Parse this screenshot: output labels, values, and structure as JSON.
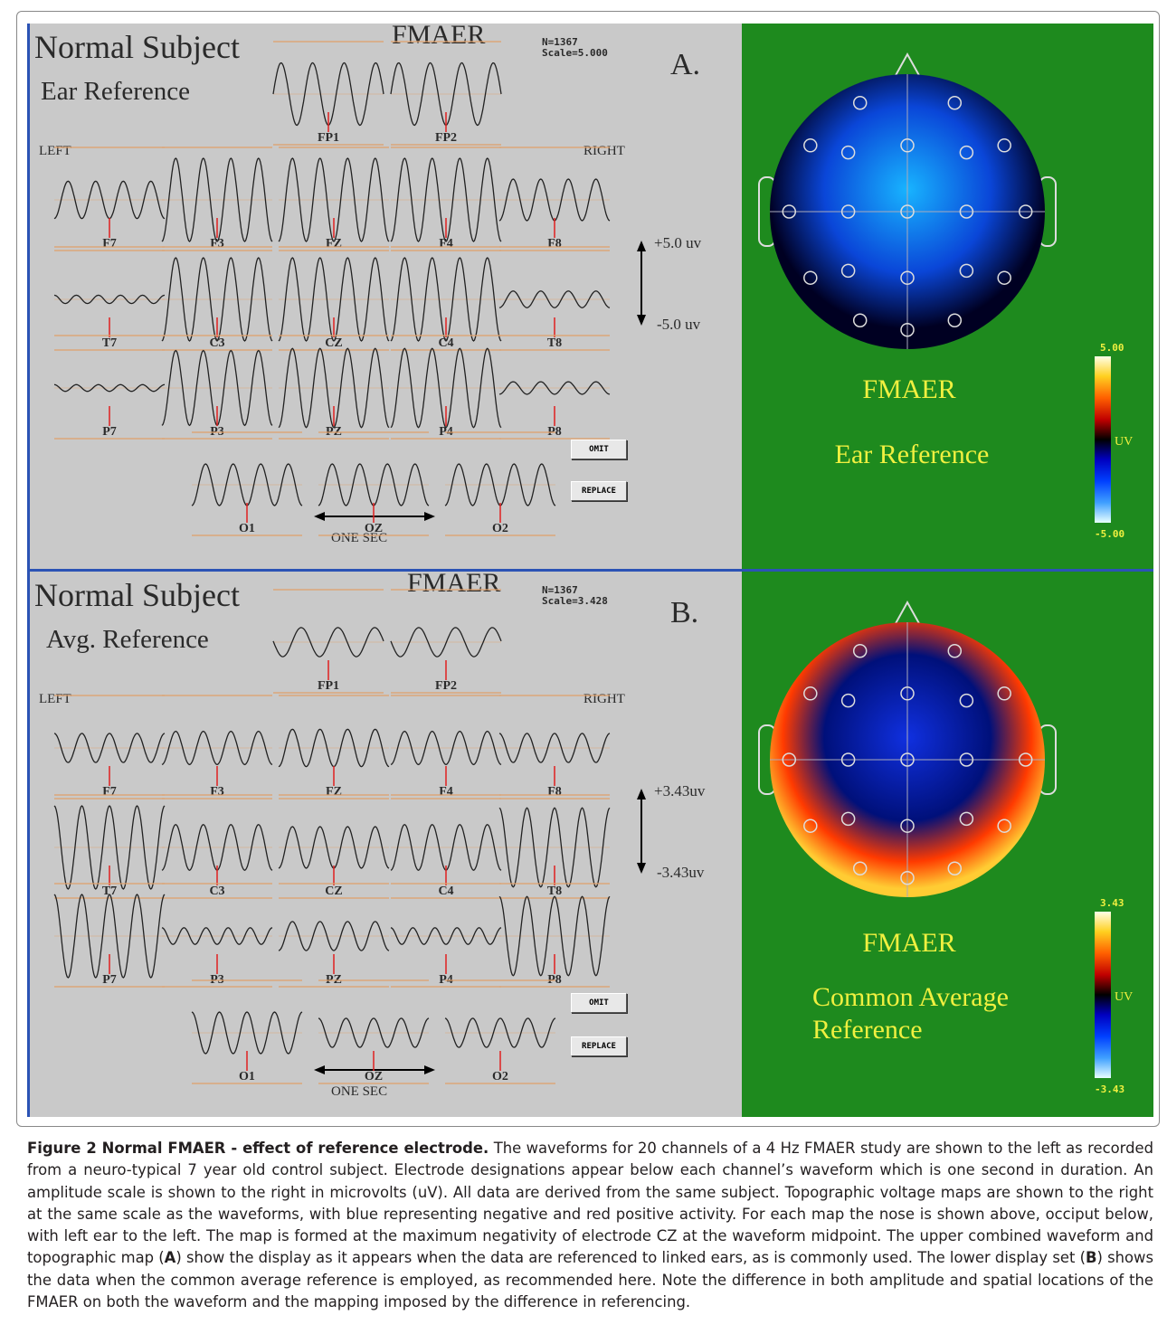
{
  "panels": [
    {
      "id": "A",
      "title": "Normal Subject",
      "subtitle": "Ear Reference",
      "header": "FMAER",
      "stats": [
        "N=1367",
        "Scale=5.000"
      ],
      "letter": "A.",
      "left_label": "LEFT",
      "right_label": "RIGHT",
      "scale_top": "+5.0 uv",
      "scale_bottom": "-5.0 uv",
      "time_label": "ONE SEC",
      "omit_label": "OMIT",
      "replace_label": "REPLACE",
      "map_title": "FMAER",
      "map_subtitle_lines": [
        "Ear  Reference"
      ],
      "colorbar_max": "5.00",
      "colorbar_min": "-5.00",
      "colorbar_unit": "UV",
      "map_colors": [
        "#18b4ff",
        "#0a46d8",
        "#000022"
      ],
      "channels": [
        {
          "name": "FP1",
          "amp": 0.75,
          "freq": 3.5,
          "phase": 0.0
        },
        {
          "name": "FP2",
          "amp": 0.75,
          "freq": 3.5,
          "phase": 0.0
        },
        {
          "name": "F7",
          "amp": 0.45,
          "freq": 4,
          "phase": 0.0
        },
        {
          "name": "F3",
          "amp": 1.0,
          "freq": 4,
          "phase": 0.0
        },
        {
          "name": "FZ",
          "amp": 1.0,
          "freq": 4,
          "phase": 0.0
        },
        {
          "name": "F4",
          "amp": 1.0,
          "freq": 4,
          "phase": 0.0
        },
        {
          "name": "F8",
          "amp": 0.5,
          "freq": 4,
          "phase": 0.0
        },
        {
          "name": "T7",
          "amp": 0.1,
          "freq": 5,
          "phase": 0.0
        },
        {
          "name": "C3",
          "amp": 1.0,
          "freq": 4,
          "phase": 0.0
        },
        {
          "name": "CZ",
          "amp": 1.0,
          "freq": 4,
          "phase": 0.0
        },
        {
          "name": "C4",
          "amp": 1.0,
          "freq": 4,
          "phase": 0.0
        },
        {
          "name": "T8",
          "amp": 0.2,
          "freq": 4,
          "phase": 0.0
        },
        {
          "name": "P7",
          "amp": 0.08,
          "freq": 5,
          "phase": 0.0
        },
        {
          "name": "P3",
          "amp": 0.9,
          "freq": 4,
          "phase": 0.0
        },
        {
          "name": "PZ",
          "amp": 0.95,
          "freq": 4,
          "phase": 0.0
        },
        {
          "name": "P4",
          "amp": 0.95,
          "freq": 4,
          "phase": 0.0
        },
        {
          "name": "P8",
          "amp": 0.15,
          "freq": 4,
          "phase": 0.0
        },
        {
          "name": "O1",
          "amp": 0.5,
          "freq": 4,
          "phase": 0.0
        },
        {
          "name": "OZ",
          "amp": 0.5,
          "freq": 4,
          "phase": 0.0
        },
        {
          "name": "O2",
          "amp": 0.5,
          "freq": 4,
          "phase": 0.0
        }
      ]
    },
    {
      "id": "B",
      "title": "Normal Subject",
      "subtitle": "Avg. Reference",
      "header": "FMAER",
      "stats": [
        "N=1367",
        "Scale=3.428"
      ],
      "letter": "B.",
      "left_label": "LEFT",
      "right_label": "RIGHT",
      "scale_top": "+3.43uv",
      "scale_bottom": "-3.43uv",
      "time_label": "ONE SEC",
      "omit_label": "OMIT",
      "replace_label": "REPLACE",
      "map_title": "FMAER",
      "map_subtitle_lines": [
        "Common Average",
        "Reference"
      ],
      "colorbar_max": "3.43",
      "colorbar_min": "-3.43",
      "colorbar_unit": "UV",
      "map_colors": [
        "#1030e0",
        "#00107a",
        "#ff3a00"
      ],
      "channels": [
        {
          "name": "FP1",
          "amp": 0.35,
          "freq": 3,
          "phase": 1.5
        },
        {
          "name": "FP2",
          "amp": 0.35,
          "freq": 3,
          "phase": 1.5
        },
        {
          "name": "F7",
          "amp": 0.35,
          "freq": 4,
          "phase": 3.14
        },
        {
          "name": "F3",
          "amp": 0.4,
          "freq": 4,
          "phase": 0.0
        },
        {
          "name": "FZ",
          "amp": 0.45,
          "freq": 4,
          "phase": 0.0
        },
        {
          "name": "F4",
          "amp": 0.4,
          "freq": 4,
          "phase": 0.0
        },
        {
          "name": "F8",
          "amp": 0.35,
          "freq": 4,
          "phase": 3.14
        },
        {
          "name": "T7",
          "amp": 1.0,
          "freq": 4,
          "phase": 3.14
        },
        {
          "name": "C3",
          "amp": 0.55,
          "freq": 4,
          "phase": 0.0
        },
        {
          "name": "CZ",
          "amp": 0.5,
          "freq": 4,
          "phase": 0.0
        },
        {
          "name": "C4",
          "amp": 0.55,
          "freq": 4,
          "phase": 0.0
        },
        {
          "name": "T8",
          "amp": 0.95,
          "freq": 4,
          "phase": 3.14
        },
        {
          "name": "P7",
          "amp": 1.0,
          "freq": 4,
          "phase": 3.14
        },
        {
          "name": "P3",
          "amp": 0.2,
          "freq": 5,
          "phase": 0.0
        },
        {
          "name": "PZ",
          "amp": 0.35,
          "freq": 4,
          "phase": 0.0
        },
        {
          "name": "P4",
          "amp": 0.2,
          "freq": 5,
          "phase": 0.0
        },
        {
          "name": "P8",
          "amp": 0.95,
          "freq": 4,
          "phase": 3.14
        },
        {
          "name": "O1",
          "amp": 0.5,
          "freq": 4,
          "phase": 3.14
        },
        {
          "name": "OZ",
          "amp": 0.35,
          "freq": 4,
          "phase": 3.14
        },
        {
          "name": "O2",
          "amp": 0.35,
          "freq": 4,
          "phase": 3.14
        }
      ]
    }
  ],
  "caption": {
    "label": "Figure 2 Normal FMAER - effect of reference electrode.",
    "text_1": " The waveforms for 20 channels of a 4 Hz FMAER study are shown to the left as recorded from a neuro-typical 7 year old control subject. Electrode designations appear below each channel’s waveform which is one second in duration. An amplitude scale is shown to the right in microvolts (uV). All data are derived from the same subject. Topographic voltage maps are shown to the right at the same scale as the waveforms, with blue representing negative and red positive activity. For each map the nose is shown above, occiput below, with left ear to the left. The map is formed at the maximum negativity of electrode CZ at the waveform midpoint. The upper combined waveform and topographic map (",
    "ref_a": "A",
    "text_2": ") show the display as it appears when the data are referenced to linked ears, as is commonly used. The lower display set (",
    "ref_b": "B",
    "text_3": ") shows the data when the common average reference is employed, as recommended here. Note the difference in both amplitude and spatial locations of the FMAER on both the waveform and the mapping imposed by the difference in referencing."
  }
}
